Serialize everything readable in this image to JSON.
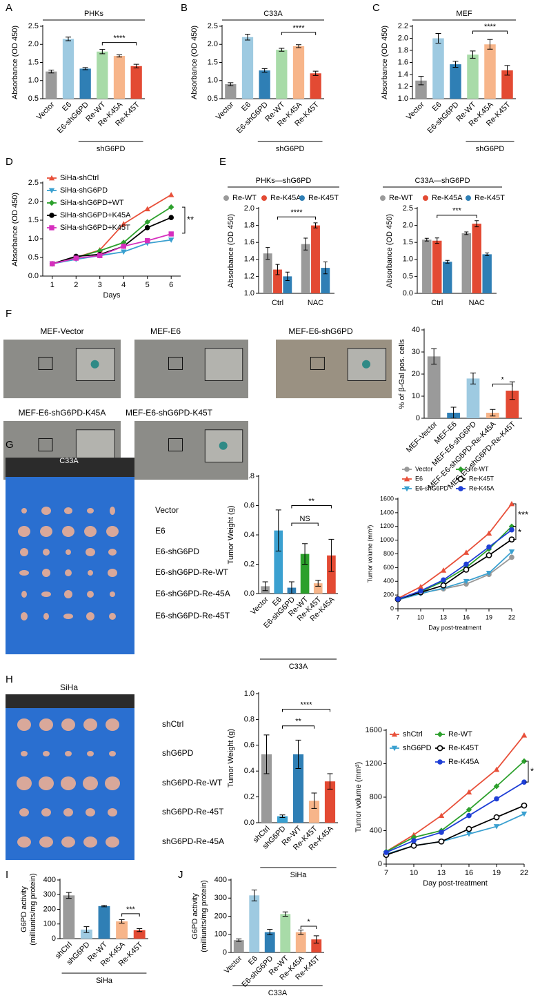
{
  "chart_data": [
    {
      "panel": "A",
      "type": "bar",
      "title": "PHKs",
      "ylabel": "Absorbance (OD 450)",
      "categories": [
        "Vector",
        "E6",
        "E6-shG6PD",
        "Re-WT",
        "Re-K45A",
        "Re-K45T"
      ],
      "values": [
        1.25,
        2.15,
        1.33,
        1.8,
        1.68,
        1.4
      ],
      "errors": [
        0.04,
        0.05,
        0.03,
        0.06,
        0.03,
        0.05
      ],
      "colors": [
        "#9a9a9a",
        "#9ecae1",
        "#2f7fb5",
        "#a8dba8",
        "#f7b58a",
        "#e34a33"
      ],
      "ylim": [
        0.5,
        2.5
      ],
      "yticks": [
        0.5,
        {
          "value": 1,
          "label": "1.0"
        },
        1.5,
        {
          "value": 2,
          "label": "2.0"
        },
        2.5
      ],
      "group_label": "shG6PD",
      "annotations": [
        "****"
      ]
    },
    {
      "panel": "B",
      "type": "bar",
      "title": "C33A",
      "ylabel": "Absorbance (OD 450)",
      "categories": [
        "Vector",
        "E6",
        "E6-shG6PD",
        "Re-WT",
        "Re-K45A",
        "Re-K45T"
      ],
      "values": [
        0.9,
        2.2,
        1.28,
        1.85,
        1.95,
        1.2
      ],
      "errors": [
        0.04,
        0.08,
        0.05,
        0.04,
        0.04,
        0.06
      ],
      "colors": [
        "#9a9a9a",
        "#9ecae1",
        "#2f7fb5",
        "#a8dba8",
        "#f7b58a",
        "#e34a33"
      ],
      "ylim": [
        0.5,
        2.5
      ],
      "yticks": [
        0.5,
        {
          "value": 1,
          "label": "1.0"
        },
        1.5,
        {
          "value": 2,
          "label": "2.0"
        },
        2.5
      ],
      "group_label": "shG6PD",
      "annotations": [
        "****"
      ]
    },
    {
      "panel": "C",
      "type": "bar",
      "title": "MEF",
      "ylabel": "Absorbance (OD 450)",
      "categories": [
        "Vector",
        "E6",
        "E6-shG6PD",
        "Re-WT",
        "Re-K45A",
        "Re-K45T"
      ],
      "values": [
        1.3,
        2.0,
        1.57,
        1.73,
        1.9,
        1.47
      ],
      "errors": [
        0.07,
        0.08,
        0.05,
        0.06,
        0.08,
        0.08
      ],
      "colors": [
        "#9a9a9a",
        "#9ecae1",
        "#2f7fb5",
        "#a8dba8",
        "#f7b58a",
        "#e34a33"
      ],
      "ylim": [
        1.0,
        2.2
      ],
      "yticks": [
        {
          "value": 1,
          "label": "1.0"
        },
        1.2,
        1.4,
        1.6,
        1.8,
        {
          "value": 2,
          "label": "2.0"
        },
        2.2
      ],
      "group_label": "shG6PD",
      "annotations": [
        "****"
      ]
    },
    {
      "panel": "D",
      "type": "line",
      "ylabel": "Absorbance (OD 450)",
      "xlabel": "Days",
      "x": [
        1,
        2,
        3,
        4,
        5,
        6
      ],
      "xlim": [
        0.6,
        6.4
      ],
      "xticks": [
        1,
        2,
        3,
        4,
        5,
        6
      ],
      "ylim": [
        0,
        2.5
      ],
      "yticks": [
        {
          "value": 0,
          "label": "0.0"
        },
        0.5,
        {
          "value": 1,
          "label": "1.0"
        },
        1.5,
        {
          "value": 2,
          "label": "2.0"
        },
        2.5
      ],
      "series": [
        {
          "name": "SiHa-shCtrl",
          "color": "#e8503a",
          "marker": "triangle",
          "values": [
            0.33,
            0.5,
            0.7,
            1.4,
            1.8,
            2.18
          ]
        },
        {
          "name": "SiHa-shG6PD",
          "color": "#3aa0d0",
          "marker": "triangle-down",
          "values": [
            0.33,
            0.45,
            0.55,
            0.65,
            0.88,
            0.97
          ]
        },
        {
          "name": "SiHa-shG6PD+WT",
          "color": "#2ca02c",
          "marker": "diamond",
          "values": [
            0.33,
            0.5,
            0.68,
            0.9,
            1.45,
            1.85
          ]
        },
        {
          "name": "SiHa-shG6PD+K45A",
          "color": "#000000",
          "marker": "circle",
          "values": [
            0.33,
            0.53,
            0.58,
            0.8,
            1.3,
            1.57
          ]
        },
        {
          "name": "SiHa-shG6PD+K45T",
          "color": "#d62fbe",
          "marker": "square",
          "values": [
            0.33,
            0.48,
            0.55,
            0.8,
            0.95,
            1.13
          ]
        }
      ],
      "annotations": [
        "**"
      ]
    },
    {
      "panel": "E",
      "type": "bar",
      "title": "PHKs—shG6PD",
      "ylabel": "Absorbance (OD 450)",
      "categories": [
        "Ctrl",
        "NAC"
      ],
      "ylim": [
        1.0,
        2.0
      ],
      "yticks": [
        {
          "value": 1,
          "label": "1.0"
        },
        1.2,
        1.4,
        1.6,
        1.8,
        {
          "value": 2,
          "label": "2.0"
        }
      ],
      "series": [
        {
          "name": "Re-WT",
          "color": "#9a9a9a",
          "values": [
            1.47,
            1.58
          ],
          "errors": [
            0.07,
            0.07
          ]
        },
        {
          "name": "Re-K45A",
          "color": "#e34a33",
          "values": [
            1.28,
            1.8
          ],
          "errors": [
            0.06,
            0.03
          ]
        },
        {
          "name": "Re-K45T",
          "color": "#2f7fb5",
          "values": [
            1.2,
            1.3
          ],
          "errors": [
            0.05,
            0.07
          ]
        }
      ],
      "annotations": [
        "****"
      ]
    },
    {
      "type": "bar",
      "title": "C33A—shG6PD",
      "ylabel": "Absorbance (OD 450)",
      "categories": [
        "Ctrl",
        "NAC"
      ],
      "ylim": [
        0,
        2.5
      ],
      "yticks": [
        {
          "value": 0,
          "label": "0.0"
        },
        0.5,
        {
          "value": 1,
          "label": "1.0"
        },
        1.5,
        {
          "value": 2,
          "label": "2.0"
        },
        2.5
      ],
      "series": [
        {
          "name": "Re-WT",
          "color": "#9a9a9a",
          "values": [
            1.58,
            1.77
          ],
          "errors": [
            0.04,
            0.04
          ]
        },
        {
          "name": "Re-K45A",
          "color": "#e34a33",
          "values": [
            1.55,
            2.05
          ],
          "errors": [
            0.08,
            0.09
          ]
        },
        {
          "name": "Re-K45T",
          "color": "#2f7fb5",
          "values": [
            0.93,
            1.15
          ],
          "errors": [
            0.04,
            0.04
          ]
        }
      ],
      "annotations": [
        "***"
      ]
    },
    {
      "type": "bar",
      "ylabel": "% of β-Gal pos. cells",
      "categories": [
        "MEF-Vector",
        "MEF-E6",
        "MEF-E6-shG6PD",
        "MEF-E6-shG6PD-Re-K45A",
        "MEF-E6-shG6PD-Re-K45T"
      ],
      "values": [
        28,
        2.5,
        18,
        2.5,
        12.5
      ],
      "errors": [
        3.5,
        2.5,
        2.5,
        1.5,
        4
      ],
      "colors": [
        "#9a9a9a",
        "#2f7fb5",
        "#9ecae1",
        "#f7b58a",
        "#e34a33"
      ],
      "ylim": [
        0,
        40
      ],
      "yticks": [
        0,
        10,
        20,
        30,
        40
      ],
      "annotations": [
        "*"
      ]
    },
    {
      "type": "bar",
      "ylabel": "Tumor Weight (g)",
      "categories": [
        "Vector",
        "E6",
        "E6-shG6PD",
        "Re-WT",
        "Re-K45T",
        "Re-K45A"
      ],
      "values": [
        0.05,
        0.43,
        0.04,
        0.27,
        0.07,
        0.26
      ],
      "errors": [
        0.03,
        0.14,
        0.04,
        0.07,
        0.02,
        0.11
      ],
      "colors": [
        "#9a9a9a",
        "#3aa0d0",
        "#2f7fb5",
        "#2ca02c",
        "#f7b58a",
        "#e34a33"
      ],
      "ylim": [
        0,
        0.8
      ],
      "yticks": [
        {
          "value": 0,
          "label": "0.0"
        },
        0.2,
        0.4,
        0.6,
        0.8
      ],
      "group_label": "C33A",
      "annotations": [
        "NS",
        "**"
      ]
    },
    {
      "type": "line",
      "ylabel": "Tumor volume (mm³)",
      "xlabel": "Day post-treatment",
      "x": [
        7,
        10,
        13,
        16,
        19,
        22
      ],
      "xlim": [
        7,
        22
      ],
      "xticks": [
        7,
        10,
        13,
        16,
        19,
        22
      ],
      "ylim": [
        0,
        1600
      ],
      "yticks": [
        0,
        200,
        400,
        600,
        800,
        1000,
        1200,
        1400,
        1600
      ],
      "series": [
        {
          "name": "Vector",
          "color": "#999999",
          "marker": "circle",
          "values": [
            130,
            230,
            290,
            360,
            500,
            750
          ]
        },
        {
          "name": "E6",
          "color": "#e8503a",
          "marker": "triangle",
          "values": [
            150,
            320,
            560,
            820,
            1100,
            1530
          ]
        },
        {
          "name": "E6-shG6PD",
          "color": "#3aa0d0",
          "marker": "triangle-down",
          "values": [
            130,
            220,
            300,
            400,
            520,
            830
          ]
        },
        {
          "name": "Re-WT",
          "color": "#2ca02c",
          "marker": "diamond",
          "values": [
            140,
            250,
            400,
            600,
            870,
            1200
          ]
        },
        {
          "name": "Re-K45T",
          "color": "#000000",
          "marker": "circle-open",
          "values": [
            140,
            240,
            340,
            570,
            780,
            1010
          ]
        },
        {
          "name": "Re-K45A",
          "color": "#1f3fd6",
          "marker": "circle",
          "values": [
            140,
            260,
            420,
            650,
            900,
            1150
          ]
        }
      ],
      "annotations": [
        "***",
        "*"
      ]
    },
    {
      "type": "bar",
      "ylabel": "Tumor Weight (g)",
      "categories": [
        "shCtrl",
        "shG6PD",
        "Re-WT",
        "Re-K45T",
        "Re-K45A"
      ],
      "values": [
        0.53,
        0.05,
        0.53,
        0.17,
        0.32
      ],
      "errors": [
        0.15,
        0.01,
        0.11,
        0.06,
        0.06
      ],
      "colors": [
        "#9a9a9a",
        "#3aa0d0",
        "#2f7fb5",
        "#f7b58a",
        "#e34a33"
      ],
      "ylim": [
        0,
        1.0
      ],
      "yticks": [
        {
          "value": 0,
          "label": "0.0"
        },
        0.2,
        0.4,
        0.6,
        0.8,
        {
          "value": 1,
          "label": "1.0"
        }
      ],
      "group_label": "SiHa",
      "annotations": [
        "**",
        "****"
      ]
    },
    {
      "type": "line",
      "ylabel": "Tumor volume (mm³)",
      "xlabel": "Day post-treatment",
      "x": [
        7,
        10,
        13,
        16,
        19,
        22
      ],
      "xlim": [
        7,
        22
      ],
      "xticks": [
        7,
        10,
        13,
        16,
        19,
        22
      ],
      "ylim": [
        0,
        1600
      ],
      "yticks": [
        0,
        400,
        800,
        1200,
        1600
      ],
      "series": [
        {
          "name": "shCtrl",
          "color": "#e8503a",
          "marker": "triangle",
          "values": [
            150,
            350,
            580,
            860,
            1130,
            1540
          ]
        },
        {
          "name": "shG6PD",
          "color": "#3aa0d0",
          "marker": "triangle-down",
          "values": [
            120,
            220,
            270,
            360,
            450,
            600
          ]
        },
        {
          "name": "Re-WT",
          "color": "#2ca02c",
          "marker": "diamond",
          "values": [
            150,
            320,
            400,
            650,
            930,
            1230
          ]
        },
        {
          "name": "Re-K45T",
          "color": "#000000",
          "marker": "circle-open",
          "values": [
            110,
            220,
            270,
            420,
            560,
            700
          ]
        },
        {
          "name": "Re-K45A",
          "color": "#1f3fd6",
          "marker": "circle",
          "values": [
            140,
            280,
            380,
            580,
            780,
            980
          ]
        }
      ],
      "annotations": [
        "*"
      ]
    },
    {
      "panel": "I",
      "type": "bar",
      "ylabel": [
        "G6PD activity",
        "(milliunits/mg protein)"
      ],
      "categories": [
        "shCtrl",
        "shG6PD",
        "Re-WT",
        "Re-K45A",
        "Re-K45T"
      ],
      "values": [
        295,
        62,
        222,
        118,
        58
      ],
      "errors": [
        20,
        20,
        5,
        12,
        10
      ],
      "colors": [
        "#9a9a9a",
        "#9ecae1",
        "#2f7fb5",
        "#f7b58a",
        "#e34a33"
      ],
      "ylim": [
        0,
        400
      ],
      "yticks": [
        0,
        100,
        200,
        300,
        400
      ],
      "group_label": "SiHa",
      "annotations": [
        "***"
      ]
    },
    {
      "panel": "J",
      "type": "bar",
      "ylabel": [
        "G6PD activity",
        "(milliunits/mg protein)"
      ],
      "categories": [
        "Vector",
        "E6",
        "E6-shG6PD",
        "Re-WT",
        "Re-K45A",
        "Re-K45T"
      ],
      "values": [
        68,
        315,
        112,
        212,
        112,
        72
      ],
      "errors": [
        7,
        30,
        15,
        12,
        12,
        20
      ],
      "colors": [
        "#9a9a9a",
        "#9ecae1",
        "#2f7fb5",
        "#a8dba8",
        "#f7b58a",
        "#e34a33"
      ],
      "ylim": [
        0,
        400
      ],
      "yticks": [
        0,
        100,
        200,
        300,
        400
      ],
      "group_label": "C33A",
      "annotations": [
        "*"
      ]
    }
  ],
  "images": [
    {
      "panel": "F",
      "labels": [
        "MEF-Vector",
        "MEF-E6",
        "MEF-E6-shG6PD",
        "MEF-E6-shG6PD-K45A",
        "MEF-E6-shG6PD-K45T"
      ]
    },
    {
      "panel": "G",
      "title": "C33A",
      "labels": [
        "Vector",
        "E6",
        "E6-shG6PD",
        "E6-shG6PD-Re-WT",
        "E6-shG6PD-Re-45A",
        "E6-shG6PD-Re-45T"
      ]
    },
    {
      "panel": "H",
      "title": "SiHa",
      "labels": [
        "shCtrl",
        "shG6PD",
        "shG6PD-Re-WT",
        "shG6PD-Re-45T",
        "shG6PD-Re-45A"
      ]
    }
  ]
}
